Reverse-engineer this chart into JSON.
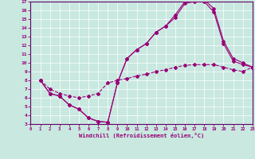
{
  "xlabel": "Windchill (Refroidissement éolien,°C)",
  "bg_color": "#c8e8e0",
  "line_color": "#990077",
  "spine_color": "#660066",
  "grid_color": "#aad4cc",
  "xlim": [
    0,
    23
  ],
  "ylim": [
    3,
    17
  ],
  "xticks": [
    0,
    1,
    2,
    3,
    4,
    5,
    6,
    7,
    8,
    9,
    10,
    11,
    12,
    13,
    14,
    15,
    16,
    17,
    18,
    19,
    20,
    21,
    22,
    23
  ],
  "yticks": [
    3,
    4,
    5,
    6,
    7,
    8,
    9,
    10,
    11,
    12,
    13,
    14,
    15,
    16,
    17
  ],
  "curve1_x": [
    1,
    2,
    3,
    4,
    5,
    6,
    7,
    8,
    9,
    10,
    11,
    12,
    13,
    14,
    15,
    16,
    17,
    18,
    19,
    20,
    21,
    22,
    23
  ],
  "curve1_y": [
    8.0,
    6.5,
    6.2,
    5.2,
    4.7,
    3.7,
    3.3,
    3.2,
    7.7,
    10.5,
    11.5,
    12.2,
    13.5,
    14.2,
    15.2,
    16.8,
    17.0,
    17.0,
    15.8,
    12.2,
    10.2,
    9.8,
    9.5
  ],
  "curve2_x": [
    1,
    2,
    3,
    4,
    5,
    6,
    7,
    8,
    9,
    10,
    11,
    12,
    13,
    14,
    15,
    16,
    17,
    18,
    19,
    20,
    21,
    22,
    23
  ],
  "curve2_y": [
    8.0,
    6.5,
    6.2,
    5.2,
    4.7,
    3.7,
    3.3,
    3.2,
    7.7,
    10.5,
    11.5,
    12.2,
    13.5,
    14.2,
    15.5,
    17.0,
    17.2,
    17.2,
    16.2,
    12.5,
    10.5,
    10.0,
    9.5
  ],
  "curve3_x": [
    1,
    2,
    3,
    4,
    5,
    6,
    7,
    8,
    9,
    10,
    11,
    12,
    13,
    14,
    15,
    16,
    17,
    18,
    19,
    20,
    21,
    22,
    23
  ],
  "curve3_y": [
    8.0,
    7.0,
    6.5,
    6.2,
    6.0,
    6.2,
    6.5,
    7.7,
    8.0,
    8.2,
    8.5,
    8.7,
    9.0,
    9.2,
    9.5,
    9.7,
    9.8,
    9.8,
    9.8,
    9.5,
    9.2,
    9.0,
    9.5
  ]
}
